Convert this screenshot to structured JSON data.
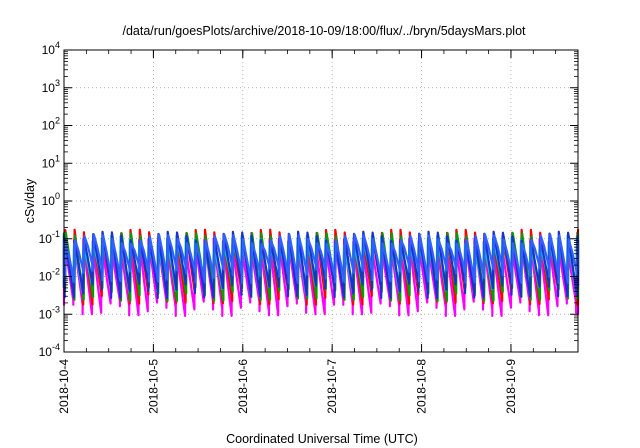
{
  "chart_data": {
    "type": "line",
    "title": "/data/run/goesPlots/archive/2018-10-09/18:00/flux/../bryn/5daysMars.plot",
    "xlabel": "Coordinated Universal Time (UTC)",
    "ylabel": "cSv/day",
    "yscale": "log",
    "ylim": [
      0.0001,
      10000
    ],
    "xlim": [
      "2018-10-04T00:00",
      "2018-10-09T18:00"
    ],
    "grid": true,
    "y_ticks": [
      {
        "base": "10",
        "exp": "-4"
      },
      {
        "base": "10",
        "exp": "-3"
      },
      {
        "base": "10",
        "exp": "-2"
      },
      {
        "base": "10",
        "exp": "-1"
      },
      {
        "base": "10",
        "exp": "0"
      },
      {
        "base": "10",
        "exp": "1"
      },
      {
        "base": "10",
        "exp": "2"
      },
      {
        "base": "10",
        "exp": "3"
      },
      {
        "base": "10",
        "exp": "4"
      }
    ],
    "x_ticks": [
      "2018-10-4",
      "2018-10-5",
      "2018-10-6",
      "2018-10-7",
      "2018-10-8",
      "2018-10-9"
    ],
    "period_hours": 2.5,
    "series": [
      {
        "color": "#ff00ff",
        "peak": 0.09,
        "trough": 0.002
      },
      {
        "color": "#ff0000",
        "peak": 0.16,
        "trough": 0.004
      },
      {
        "color": "#00a000",
        "peak": 0.13,
        "trough": 0.005
      },
      {
        "color": "#00cccc",
        "peak": 0.11,
        "trough": 0.008
      },
      {
        "color": "#1e2fcf",
        "peak": 0.14,
        "trough": 0.006
      },
      {
        "color": "#3060ff",
        "peak": 0.12,
        "trough": 0.015
      }
    ]
  }
}
